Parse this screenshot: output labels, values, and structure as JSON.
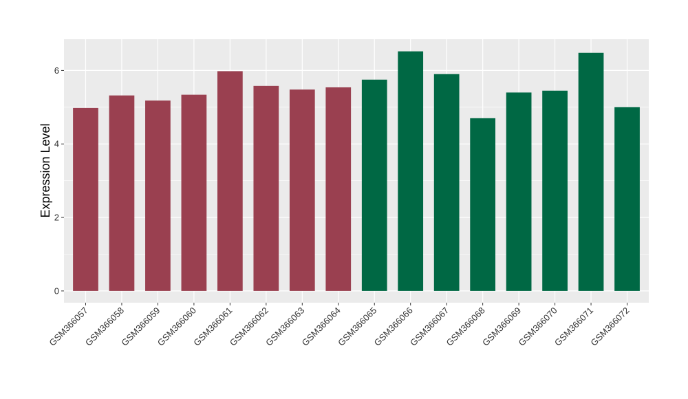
{
  "chart_data": {
    "type": "bar",
    "title": "",
    "xlabel": "",
    "ylabel": "Expression Level",
    "ylim": [
      -0.32,
      6.85
    ],
    "yticks": [
      0,
      2,
      4,
      6
    ],
    "grid": true,
    "categories": [
      "GSM366057",
      "GSM366058",
      "GSM366059",
      "GSM366060",
      "GSM366061",
      "GSM366062",
      "GSM366063",
      "GSM366064",
      "GSM366065",
      "GSM366066",
      "GSM366067",
      "GSM366068",
      "GSM366069",
      "GSM366070",
      "GSM366071",
      "GSM366072"
    ],
    "values": [
      4.98,
      5.32,
      5.18,
      5.34,
      5.98,
      5.58,
      5.48,
      5.54,
      5.75,
      6.52,
      5.9,
      4.7,
      5.4,
      5.45,
      6.48,
      5.0
    ],
    "colors": [
      "#9A4050",
      "#9A4050",
      "#9A4050",
      "#9A4050",
      "#9A4050",
      "#9A4050",
      "#9A4050",
      "#9A4050",
      "#006844",
      "#006844",
      "#006844",
      "#006844",
      "#006844",
      "#006844",
      "#006844",
      "#006844"
    ],
    "panel_background": "#EBEBEB",
    "grid_color": "#FFFFFF"
  }
}
